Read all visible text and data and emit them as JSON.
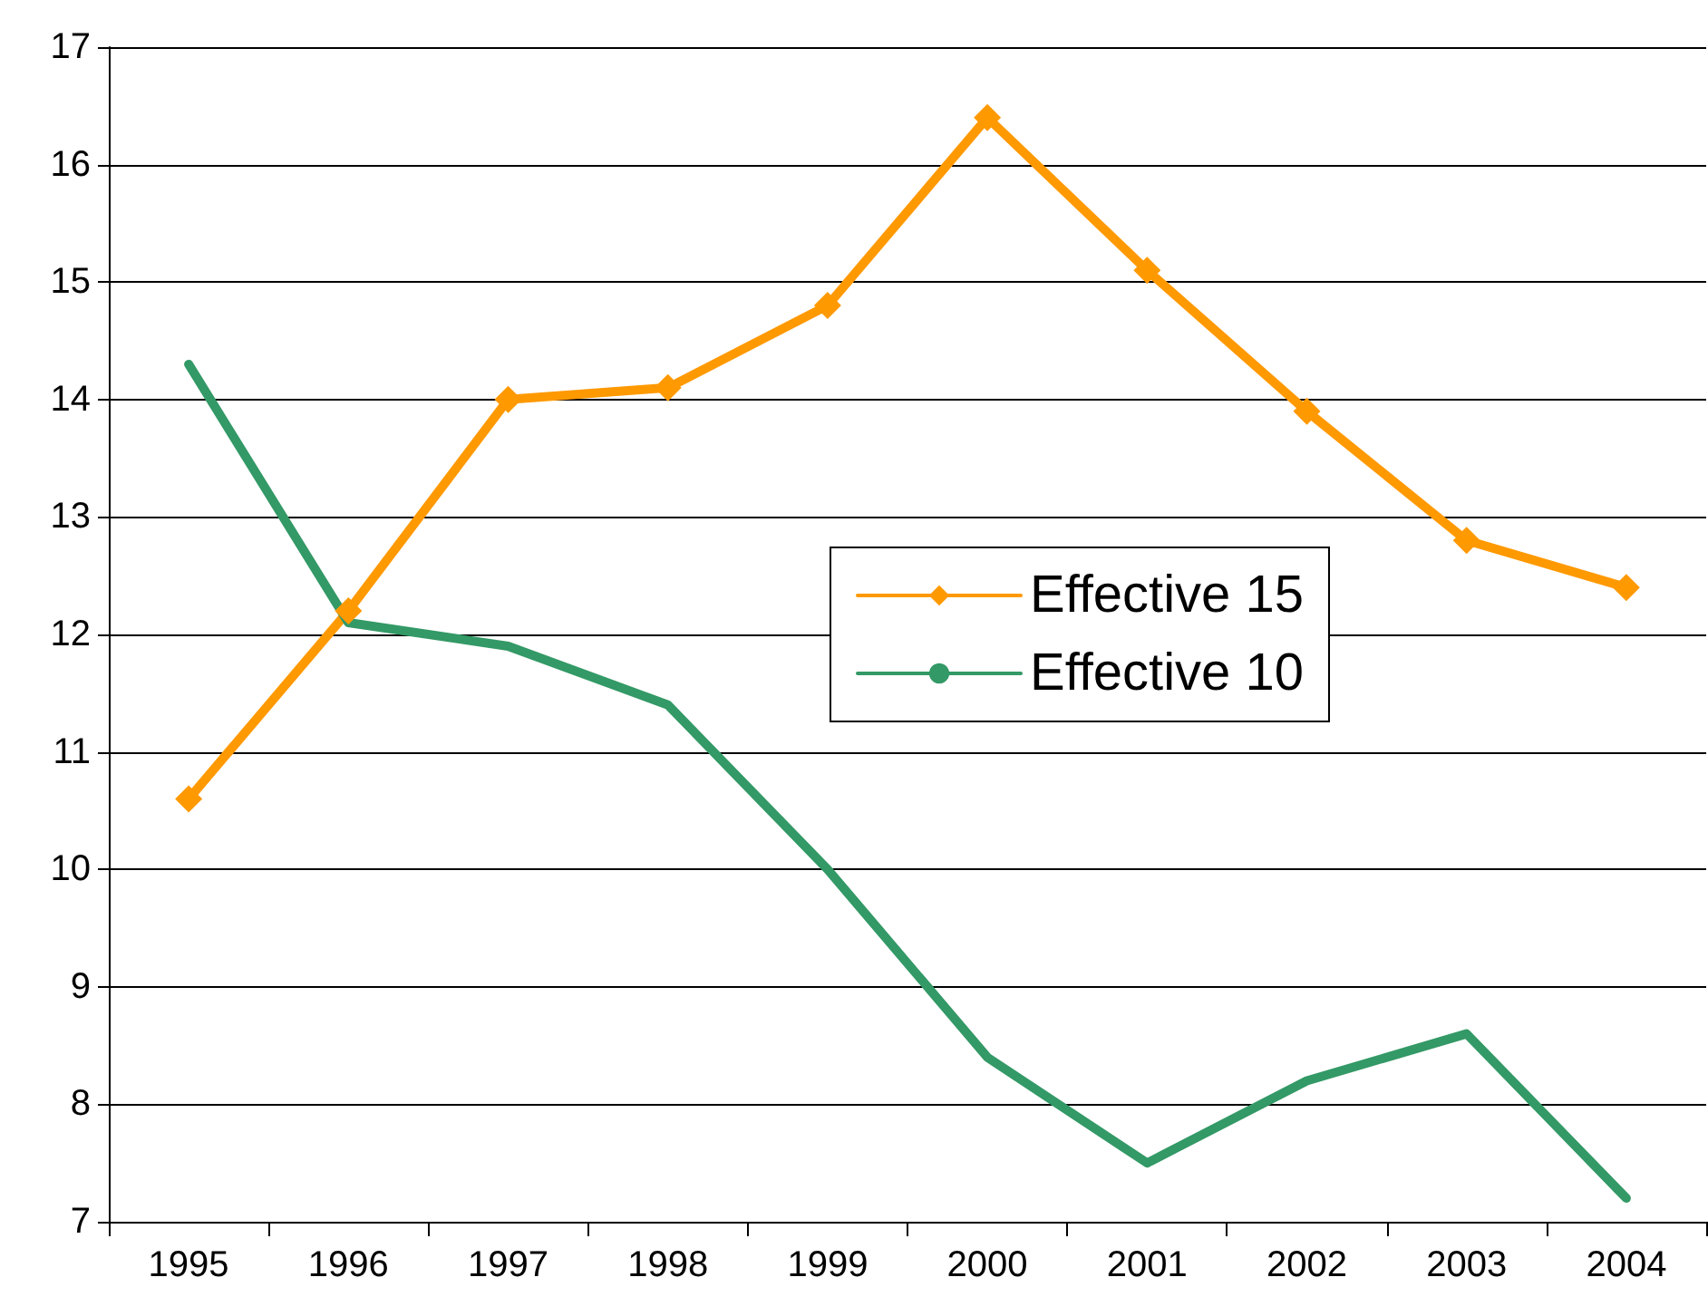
{
  "chart_data": {
    "type": "line",
    "categories": [
      "1995",
      "1996",
      "1997",
      "1998",
      "1999",
      "2000",
      "2001",
      "2002",
      "2003",
      "2004"
    ],
    "series": [
      {
        "name": "Effective 15",
        "color": "#ff9900",
        "marker": "diamond",
        "values": [
          10.6,
          12.2,
          14.0,
          14.1,
          14.8,
          16.4,
          15.1,
          13.9,
          12.8,
          12.4
        ]
      },
      {
        "name": "Effective 10",
        "color": "#339966",
        "marker": "none",
        "values": [
          14.3,
          12.1,
          11.9,
          11.4,
          10.0,
          8.4,
          7.5,
          8.2,
          8.6,
          7.2
        ]
      }
    ],
    "ylim": [
      7,
      17
    ],
    "yticks": [
      7,
      8,
      9,
      10,
      11,
      12,
      13,
      14,
      15,
      16,
      17
    ],
    "grid": "y",
    "legend": "right",
    "line_style": "solid"
  }
}
